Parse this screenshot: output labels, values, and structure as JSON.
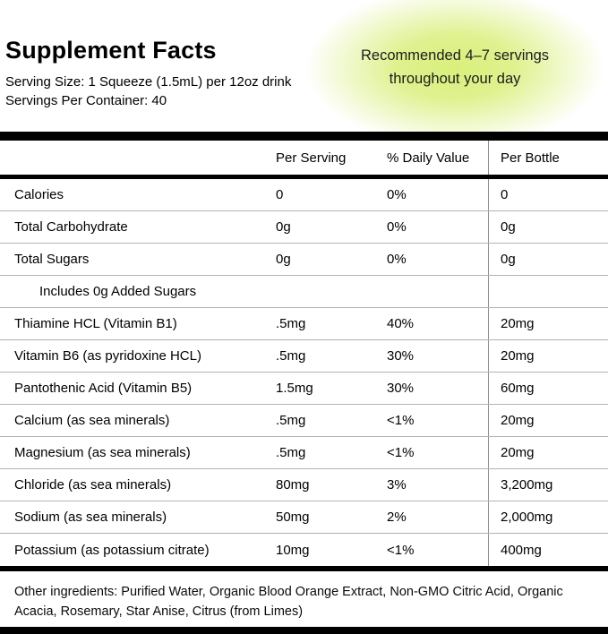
{
  "header": {
    "title": "Supplement Facts",
    "serving_size": "Serving Size: 1 Squeeze (1.5mL) per 12oz drink",
    "servings_per_container": "Servings Per Container: 40",
    "highlight": {
      "line1": "Recommended 4–7 servings",
      "line2": "throughout your day",
      "glow_color": "#d9ef7c"
    }
  },
  "table": {
    "columns": [
      "Per Serving",
      "% Daily Value",
      "Per Bottle"
    ],
    "rows": [
      {
        "name": "Calories",
        "per_serving": "0",
        "daily_value": "0%",
        "per_bottle": "0"
      },
      {
        "name": "Total Carbohydrate",
        "per_serving": "0g",
        "daily_value": "0%",
        "per_bottle": "0g"
      },
      {
        "name": "Total Sugars",
        "per_serving": "0g",
        "daily_value": "0%",
        "per_bottle": "0g"
      },
      {
        "name": "Includes 0g Added Sugars",
        "per_serving": "",
        "daily_value": "",
        "per_bottle": ""
      },
      {
        "name": "Thiamine HCL (Vitamin B1)",
        "per_serving": ".5mg",
        "daily_value": "40%",
        "per_bottle": "20mg"
      },
      {
        "name": "Vitamin B6 (as pyridoxine HCL)",
        "per_serving": ".5mg",
        "daily_value": "30%",
        "per_bottle": "20mg"
      },
      {
        "name": "Pantothenic Acid (Vitamin B5)",
        "per_serving": "1.5mg",
        "daily_value": "30%",
        "per_bottle": "60mg"
      },
      {
        "name": "Calcium (as sea minerals)",
        "per_serving": ".5mg",
        "daily_value": "<1%",
        "per_bottle": "20mg"
      },
      {
        "name": "Magnesium (as sea minerals)",
        "per_serving": ".5mg",
        "daily_value": "<1%",
        "per_bottle": "20mg"
      },
      {
        "name": "Chloride (as sea minerals)",
        "per_serving": "80mg",
        "daily_value": "3%",
        "per_bottle": "3,200mg"
      },
      {
        "name": "Sodium (as sea minerals)",
        "per_serving": "50mg",
        "daily_value": "2%",
        "per_bottle": "2,000mg"
      },
      {
        "name": "Potassium (as potassium citrate)",
        "per_serving": "10mg",
        "daily_value": "<1%",
        "per_bottle": "400mg"
      }
    ]
  },
  "footer": {
    "other_ingredients": "Other ingredients: Purified Water, Organic Blood Orange Extract, Non-GMO Citric Acid, Organic Acacia, Rosemary, Star Anise, Citrus (from Limes)"
  }
}
